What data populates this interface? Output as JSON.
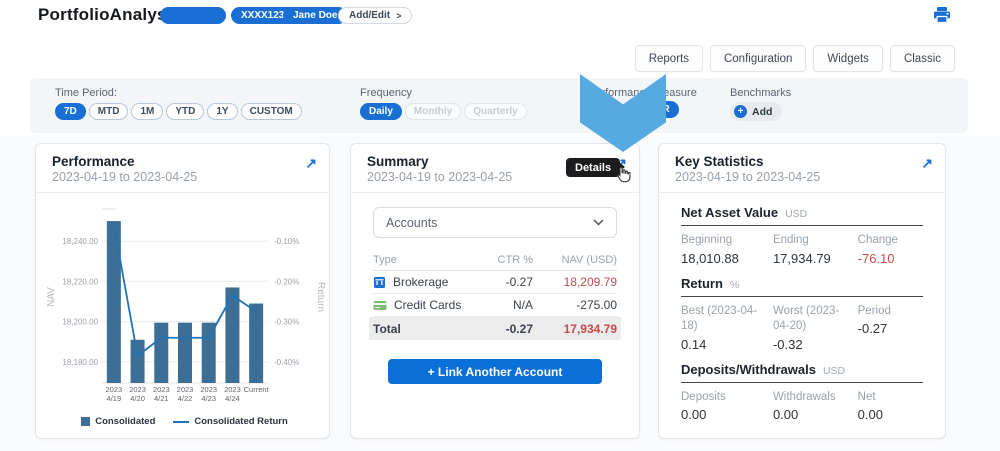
{
  "colors": {
    "brand_blue": "#1a6fd4",
    "arrow_blue": "#57a9e1",
    "bar_blue": "#3c6e96",
    "line_blue": "#2173b4",
    "negative_red": "#c9494b"
  },
  "header": {
    "app_title": "PortfolioAnalyst",
    "masked_pill": "",
    "account_number": "XXXX1234",
    "user_name": "Jane Doe",
    "add_edit": "Add/Edit",
    "add_edit_chevron": ">"
  },
  "nav": {
    "buttons": [
      "Reports",
      "Configuration",
      "Widgets",
      "Classic"
    ]
  },
  "filters": {
    "time_period": {
      "label": "Time Period:",
      "options": [
        "7D",
        "MTD",
        "1M",
        "YTD",
        "1Y",
        "CUSTOM"
      ],
      "selected": "7D"
    },
    "frequency": {
      "label": "Frequency",
      "options": [
        "Daily",
        "Monthly",
        "Quarterly"
      ],
      "selected": "Daily"
    },
    "performance_measure": {
      "label": "Performance Measure",
      "selected": "TWR"
    },
    "benchmarks": {
      "label": "Benchmarks",
      "add_label": "Add"
    }
  },
  "performance_card": {
    "title": "Performance",
    "date_range": "2023-04-19 to 2023-04-25",
    "legend": [
      "Consolidated",
      "Consolidated Return"
    ]
  },
  "chart_data": {
    "type": "bar",
    "title": "Performance 2023-04-19 to 2023-04-25",
    "categories": [
      "2023 4/19",
      "2023 4/20",
      "2023 4/21",
      "2023 4/22",
      "2023 4/23",
      "2023 4/24",
      "Current"
    ],
    "series": [
      {
        "name": "Consolidated",
        "kind": "bar",
        "axis": "left",
        "values": [
          18250,
          18191,
          18199.5,
          18199.5,
          18199.5,
          18217,
          18209
        ]
      },
      {
        "name": "Consolidated Return",
        "kind": "line",
        "axis": "right",
        "values": [
          -0.06,
          -0.385,
          -0.34,
          -0.34,
          -0.34,
          -0.235,
          -0.275
        ]
      }
    ],
    "left_axis": {
      "title": "NAV",
      "tick_labels": [
        "18,180.00",
        "18,200.00",
        "18,220.00",
        "18,240.00"
      ],
      "tick_values": [
        18180,
        18200,
        18220,
        18240
      ],
      "range": [
        18170,
        18258
      ]
    },
    "right_axis": {
      "title": "Return",
      "tick_labels": [
        "-0.40%",
        "-0.30%",
        "-0.20%",
        "-0.10%"
      ],
      "tick_values": [
        -0.4,
        -0.3,
        -0.2,
        -0.1
      ]
    },
    "grid": true,
    "legend_position": "bottom"
  },
  "summary_card": {
    "title": "Summary",
    "date_range": "2023-04-19 to 2023-04-25",
    "tooltip": "Details",
    "accounts_dropdown": "Accounts",
    "table": {
      "headers": [
        "Type",
        "CTR %",
        "NAV (USD)"
      ],
      "rows": [
        {
          "type": "Brokerage",
          "icon": "bank-icon",
          "ctr": "-0.27",
          "nav": "18,209.79"
        },
        {
          "type": "Credit Cards",
          "icon": "credit-card-icon",
          "ctr": "N/A",
          "nav": "-275.00"
        }
      ],
      "total": {
        "label": "Total",
        "ctr": "-0.27",
        "nav": "17,934.79"
      }
    },
    "link_button": "+ Link Another Account"
  },
  "key_statistics_card": {
    "title": "Key Statistics",
    "date_range": "2023-04-19 to 2023-04-25",
    "sections": [
      {
        "heading": "Net Asset Value",
        "unit": "USD",
        "cols": [
          {
            "label": "Beginning",
            "value": "18,010.88"
          },
          {
            "label": "Ending",
            "value": "17,934.79"
          },
          {
            "label": "Change",
            "value": "-76.10",
            "negative": true
          }
        ]
      },
      {
        "heading": "Return",
        "unit": "%",
        "cols": [
          {
            "label": "Best (2023-04-18)",
            "value": "0.14"
          },
          {
            "label": "Worst (2023-04-20)",
            "value": "-0.32"
          },
          {
            "label": "Period",
            "value": "-0.27"
          }
        ]
      },
      {
        "heading": "Deposits/Withdrawals",
        "unit": "USD",
        "cols": [
          {
            "label": "Deposits",
            "value": "0.00"
          },
          {
            "label": "Withdrawals",
            "value": "0.00"
          },
          {
            "label": "Net",
            "value": "0.00"
          }
        ]
      }
    ]
  }
}
